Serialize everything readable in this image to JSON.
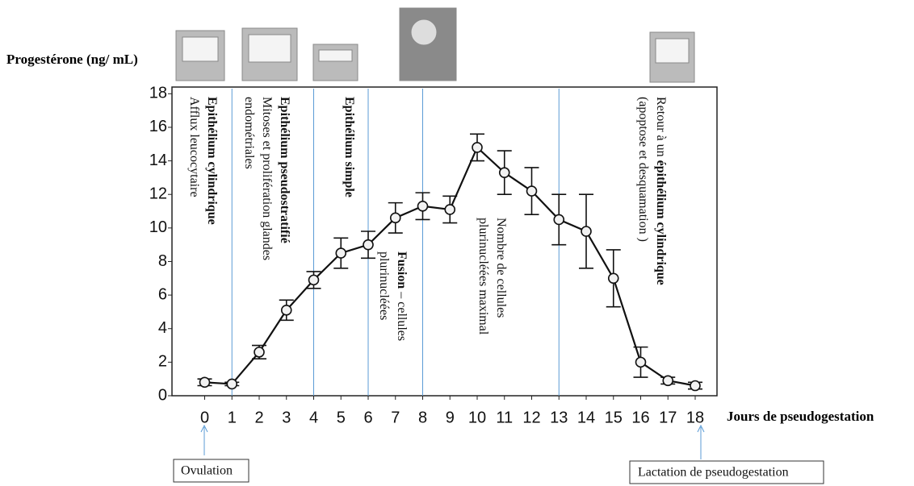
{
  "chart_data": {
    "type": "line",
    "y_label": "Progestérone (ng/ mL)",
    "x_label": "Jours de pseudogestation",
    "x": [
      0,
      1,
      2,
      3,
      4,
      5,
      6,
      7,
      8,
      9,
      10,
      11,
      12,
      13,
      14,
      15,
      16,
      17,
      18
    ],
    "values": [
      0.8,
      0.7,
      2.6,
      5.1,
      6.9,
      8.5,
      9.0,
      10.6,
      11.3,
      11.1,
      14.8,
      13.3,
      12.2,
      10.5,
      9.8,
      7.0,
      2.0,
      0.9,
      0.6
    ],
    "errors": [
      0.2,
      0.1,
      0.4,
      0.6,
      0.5,
      0.9,
      0.8,
      0.9,
      0.8,
      0.8,
      0.8,
      1.3,
      1.4,
      1.5,
      2.2,
      1.7,
      0.9,
      0.2,
      0.2
    ],
    "color": "#111111",
    "xlim": [
      -1.2,
      18.8
    ],
    "ylim": [
      0,
      18.4
    ],
    "xticks": [
      0,
      1,
      2,
      3,
      4,
      5,
      6,
      7,
      8,
      9,
      10,
      11,
      12,
      13,
      14,
      15,
      16,
      17,
      18
    ],
    "yticks": [
      0,
      2,
      4,
      6,
      8,
      10,
      12,
      14,
      16,
      18
    ],
    "phase_boundaries": [
      1,
      4,
      6,
      8,
      13
    ],
    "phase_color": "#5b9bd5",
    "annotations": [
      {
        "lines": [
          [
            {
              "text": "Epithélium cylindrique",
              "bold": true
            }
          ],
          [
            {
              "text": "Afflux leucocytaire",
              "bold": false
            }
          ]
        ]
      },
      {
        "lines": [
          [
            {
              "text": "Epithélium pseudostratifié",
              "bold": true
            }
          ],
          [
            {
              "text": "Mitoses et prolifération glandes",
              "bold": false
            }
          ],
          [
            {
              "text": "endométriales",
              "bold": false
            }
          ]
        ]
      },
      {
        "lines": [
          [
            {
              "text": "Epithélium simple",
              "bold": true
            }
          ]
        ]
      },
      {
        "lines": [
          [
            {
              "text": "Fusion",
              "bold": true
            },
            {
              "text": " – cellules",
              "bold": false
            }
          ],
          [
            {
              "text": "plurinucléées",
              "bold": false
            }
          ]
        ]
      },
      {
        "lines": [
          [
            {
              "text": "Nombre de cellules",
              "bold": false
            }
          ],
          [
            {
              "text": "plurinucléées maximal",
              "bold": false
            }
          ]
        ]
      },
      {
        "lines": [
          [
            {
              "text": "Retour à un ",
              "bold": false
            },
            {
              "text": "épithélium cylindrique",
              "bold": true
            }
          ],
          [
            {
              "text": "(apoptose et desquamation )",
              "bold": false
            }
          ]
        ]
      }
    ],
    "events": [
      "Ovulation",
      "Lactation de pseudogestation"
    ]
  }
}
